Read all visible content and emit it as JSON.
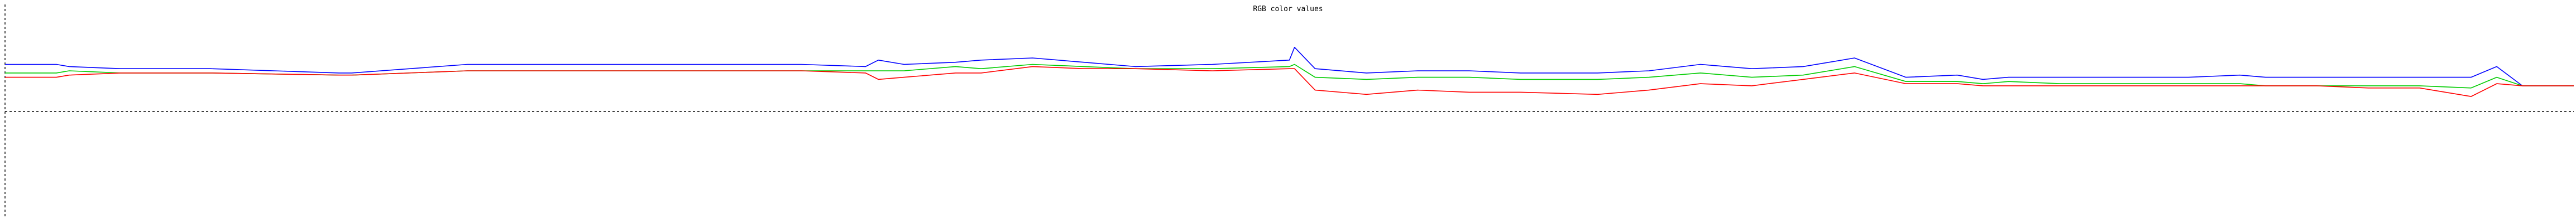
{
  "chart_data": {
    "type": "line",
    "title": "RGB color values",
    "xlabel": "",
    "ylabel": "",
    "ylim": [
      0,
      1
    ],
    "xlim": [
      0,
      100
    ],
    "grid": false,
    "legend": "none",
    "midline_y": 0.5,
    "x": [
      0,
      2,
      2.5,
      4.5,
      8,
      13,
      13.5,
      18,
      21,
      24,
      29,
      31,
      33.5,
      34,
      35,
      37,
      38,
      40,
      42,
      44,
      47,
      50,
      50.2,
      51,
      53,
      55,
      57,
      59,
      62,
      64,
      66,
      68,
      70,
      72,
      74,
      76,
      77,
      78,
      80,
      81,
      83,
      85,
      87,
      88,
      90,
      92,
      94,
      96,
      97,
      98,
      99,
      100
    ],
    "series": [
      {
        "color": "#0000ff",
        "values": [
          0.72,
          0.72,
          0.71,
          0.7,
          0.7,
          0.68,
          0.68,
          0.72,
          0.72,
          0.72,
          0.72,
          0.72,
          0.71,
          0.74,
          0.72,
          0.73,
          0.74,
          0.75,
          0.73,
          0.71,
          0.72,
          0.74,
          0.8,
          0.7,
          0.68,
          0.69,
          0.69,
          0.68,
          0.68,
          0.69,
          0.72,
          0.7,
          0.71,
          0.75,
          0.66,
          0.67,
          0.65,
          0.66,
          0.66,
          0.66,
          0.66,
          0.66,
          0.67,
          0.66,
          0.66,
          0.66,
          0.66,
          0.66,
          0.71,
          0.62,
          0.62,
          0.62
        ]
      },
      {
        "color": "#00cc00",
        "values": [
          0.68,
          0.68,
          0.69,
          0.68,
          0.68,
          0.67,
          0.67,
          0.69,
          0.69,
          0.69,
          0.69,
          0.69,
          0.69,
          0.69,
          0.69,
          0.71,
          0.7,
          0.72,
          0.71,
          0.7,
          0.7,
          0.71,
          0.72,
          0.66,
          0.65,
          0.66,
          0.66,
          0.65,
          0.65,
          0.66,
          0.68,
          0.66,
          0.67,
          0.71,
          0.64,
          0.64,
          0.63,
          0.64,
          0.63,
          0.63,
          0.63,
          0.63,
          0.63,
          0.62,
          0.62,
          0.62,
          0.62,
          0.61,
          0.66,
          0.62,
          0.62,
          0.62
        ]
      },
      {
        "color": "#ff0000",
        "values": [
          0.66,
          0.66,
          0.67,
          0.68,
          0.68,
          0.67,
          0.67,
          0.69,
          0.69,
          0.69,
          0.69,
          0.69,
          0.68,
          0.65,
          0.66,
          0.68,
          0.68,
          0.71,
          0.7,
          0.7,
          0.69,
          0.7,
          0.7,
          0.6,
          0.58,
          0.6,
          0.59,
          0.59,
          0.58,
          0.6,
          0.63,
          0.62,
          0.65,
          0.68,
          0.63,
          0.63,
          0.62,
          0.62,
          0.62,
          0.62,
          0.62,
          0.62,
          0.62,
          0.62,
          0.62,
          0.61,
          0.61,
          0.57,
          0.63,
          0.62,
          0.62,
          0.62
        ]
      }
    ]
  }
}
